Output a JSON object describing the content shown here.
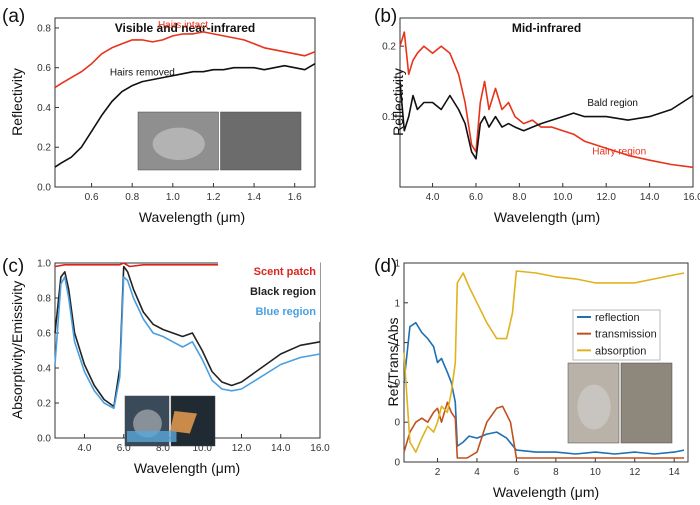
{
  "figure": {
    "panels": [
      {
        "label": "(a)"
      },
      {
        "label": "(b)"
      },
      {
        "label": "(c)"
      },
      {
        "label": "(d)"
      }
    ]
  },
  "chart_data": [
    {
      "panel": "(a)",
      "type": "line",
      "title": "Visible and near-infrared",
      "xlabel": "Wavelength (μm)",
      "ylabel": "Reflectivity",
      "xlim": [
        0.42,
        1.7
      ],
      "ylim": [
        0,
        0.85
      ],
      "xticks": [
        0.6,
        0.8,
        1.0,
        1.2,
        1.4,
        1.6
      ],
      "yticks": [
        0.0,
        0.2,
        0.4,
        0.6,
        0.8
      ],
      "tick_decimals": 1,
      "grid": false,
      "legend": "none",
      "series": [
        {
          "name": "Hairs intact",
          "color": "#e8331b",
          "x": [
            0.42,
            0.45,
            0.5,
            0.55,
            0.6,
            0.65,
            0.7,
            0.75,
            0.8,
            0.85,
            0.9,
            0.95,
            1.0,
            1.05,
            1.1,
            1.15,
            1.2,
            1.25,
            1.3,
            1.35,
            1.4,
            1.45,
            1.5,
            1.55,
            1.6,
            1.65,
            1.7
          ],
          "y": [
            0.5,
            0.52,
            0.55,
            0.58,
            0.62,
            0.67,
            0.7,
            0.72,
            0.74,
            0.74,
            0.73,
            0.74,
            0.76,
            0.77,
            0.77,
            0.78,
            0.77,
            0.76,
            0.75,
            0.74,
            0.72,
            0.7,
            0.69,
            0.68,
            0.67,
            0.66,
            0.68
          ]
        },
        {
          "name": "Hairs removed",
          "color": "#111111",
          "x": [
            0.42,
            0.45,
            0.5,
            0.55,
            0.6,
            0.65,
            0.7,
            0.75,
            0.8,
            0.85,
            0.9,
            0.95,
            1.0,
            1.05,
            1.1,
            1.15,
            1.2,
            1.25,
            1.3,
            1.35,
            1.4,
            1.45,
            1.5,
            1.55,
            1.6,
            1.65,
            1.7
          ],
          "y": [
            0.1,
            0.12,
            0.15,
            0.2,
            0.28,
            0.36,
            0.43,
            0.48,
            0.51,
            0.53,
            0.54,
            0.55,
            0.56,
            0.57,
            0.58,
            0.58,
            0.59,
            0.59,
            0.6,
            0.6,
            0.6,
            0.59,
            0.6,
            0.61,
            0.6,
            0.59,
            0.62
          ]
        }
      ],
      "annotations": [
        {
          "text": "Hairs intact",
          "x": 1.05,
          "y": 0.8,
          "color": "#e8331b"
        },
        {
          "text": "Hairs removed",
          "x": 0.85,
          "y": 0.56,
          "color": "#111111"
        }
      ]
    },
    {
      "panel": "(b)",
      "type": "line",
      "title": "Mid-infrared",
      "xlabel": "Wavelength (μm)",
      "ylabel": "Reflectivity",
      "xlim": [
        2.5,
        16
      ],
      "ylim": [
        0,
        0.24
      ],
      "xticks": [
        4,
        6,
        8,
        10,
        12,
        14,
        16
      ],
      "yticks": [
        0.1,
        0.2
      ],
      "tick_decimals": 1,
      "grid": false,
      "legend": "none",
      "series": [
        {
          "name": "Hairy region",
          "color": "#e8331b",
          "x": [
            2.5,
            2.7,
            2.9,
            3.1,
            3.3,
            3.6,
            4.0,
            4.4,
            4.8,
            5.2,
            5.5,
            5.8,
            6.0,
            6.2,
            6.4,
            6.6,
            6.9,
            7.2,
            7.5,
            7.8,
            8.2,
            8.6,
            9.0,
            9.5,
            10.0,
            10.5,
            11.0,
            12.0,
            13.0,
            14.0,
            15.0,
            16.0
          ],
          "y": [
            0.2,
            0.22,
            0.16,
            0.18,
            0.19,
            0.2,
            0.19,
            0.2,
            0.19,
            0.16,
            0.12,
            0.06,
            0.05,
            0.12,
            0.15,
            0.11,
            0.14,
            0.11,
            0.12,
            0.1,
            0.09,
            0.095,
            0.085,
            0.085,
            0.08,
            0.075,
            0.065,
            0.055,
            0.045,
            0.038,
            0.032,
            0.028
          ]
        },
        {
          "name": "Bald region",
          "color": "#111111",
          "x": [
            2.5,
            2.7,
            2.9,
            3.1,
            3.3,
            3.6,
            4.0,
            4.4,
            4.8,
            5.2,
            5.5,
            5.8,
            6.0,
            6.2,
            6.4,
            6.6,
            6.9,
            7.2,
            7.5,
            7.8,
            8.2,
            8.6,
            9.0,
            9.5,
            10.0,
            10.5,
            11.0,
            12.0,
            13.0,
            14.0,
            15.0,
            16.0
          ],
          "y": [
            0.15,
            0.08,
            0.1,
            0.13,
            0.11,
            0.12,
            0.12,
            0.11,
            0.13,
            0.11,
            0.09,
            0.05,
            0.04,
            0.09,
            0.1,
            0.085,
            0.1,
            0.085,
            0.09,
            0.085,
            0.08,
            0.085,
            0.09,
            0.095,
            0.1,
            0.105,
            0.1,
            0.1,
            0.095,
            0.1,
            0.11,
            0.13
          ]
        }
      ],
      "annotations": [
        {
          "text": "Bald region",
          "x": 12.3,
          "y": 0.115,
          "color": "#111111"
        },
        {
          "text": "Hairy region",
          "x": 12.6,
          "y": 0.046,
          "color": "#e8331b"
        }
      ]
    },
    {
      "panel": "(c)",
      "type": "line",
      "xlabel": "Wavelength (μm)",
      "ylabel": "Absorptivity/Emissivity",
      "xlim": [
        2.5,
        16
      ],
      "ylim": [
        0,
        1
      ],
      "xticks": [
        4,
        6,
        8,
        10,
        12,
        14,
        16
      ],
      "yticks": [
        0.0,
        0.2,
        0.4,
        0.6,
        0.8,
        1.0
      ],
      "tick_decimals": 1,
      "grid": false,
      "legend": "top-right",
      "series": [
        {
          "name": "Scent patch",
          "color": "#d9261c",
          "x": [
            2.5,
            3.0,
            4.0,
            5.0,
            5.8,
            6.0,
            6.3,
            7.0,
            8.0,
            10.0,
            12.0,
            14.0,
            16.0
          ],
          "y": [
            0.98,
            0.99,
            0.99,
            0.99,
            0.99,
            1.0,
            0.98,
            0.99,
            0.99,
            0.99,
            0.99,
            0.99,
            0.99
          ]
        },
        {
          "name": "Black region",
          "color": "#222222",
          "x": [
            2.5,
            2.8,
            3.0,
            3.2,
            3.5,
            4.0,
            4.5,
            5.0,
            5.5,
            5.8,
            6.0,
            6.2,
            6.5,
            7.0,
            7.5,
            8.0,
            8.5,
            9.0,
            9.5,
            10.0,
            10.5,
            11.0,
            11.5,
            12.0,
            13.0,
            14.0,
            15.0,
            16.0
          ],
          "y": [
            0.6,
            0.92,
            0.95,
            0.85,
            0.6,
            0.42,
            0.3,
            0.22,
            0.18,
            0.4,
            0.98,
            0.95,
            0.85,
            0.72,
            0.65,
            0.62,
            0.6,
            0.58,
            0.6,
            0.5,
            0.38,
            0.32,
            0.3,
            0.32,
            0.4,
            0.48,
            0.53,
            0.55
          ]
        },
        {
          "name": "Blue region",
          "color": "#4a9fe0",
          "x": [
            2.5,
            2.8,
            3.0,
            3.2,
            3.5,
            4.0,
            4.5,
            5.0,
            5.5,
            5.8,
            6.0,
            6.2,
            6.5,
            7.0,
            7.5,
            8.0,
            8.5,
            9.0,
            9.5,
            10.0,
            10.5,
            11.0,
            11.5,
            12.0,
            13.0,
            14.0,
            15.0,
            16.0
          ],
          "y": [
            0.42,
            0.88,
            0.92,
            0.8,
            0.55,
            0.38,
            0.27,
            0.2,
            0.17,
            0.35,
            0.92,
            0.9,
            0.8,
            0.68,
            0.6,
            0.58,
            0.55,
            0.52,
            0.55,
            0.45,
            0.33,
            0.28,
            0.27,
            0.28,
            0.35,
            0.42,
            0.46,
            0.48
          ]
        }
      ]
    },
    {
      "panel": "(d)",
      "type": "line",
      "xlabel": "Wavelength (μm)",
      "ylabel": "Ref/Trans/Abs",
      "xlim": [
        0.3,
        14.7
      ],
      "ylim": [
        0,
        1
      ],
      "xticks": [
        2,
        4,
        6,
        8,
        10,
        12,
        14
      ],
      "yticks": [
        0,
        0.2,
        0.4,
        0.6,
        0.8,
        1
      ],
      "tick_decimals": 0,
      "grid": false,
      "legend": "center-right",
      "series": [
        {
          "name": "reflection",
          "color": "#1f6fb2",
          "x": [
            0.3,
            0.6,
            0.9,
            1.2,
            1.5,
            1.8,
            2.0,
            2.2,
            2.5,
            2.7,
            2.9,
            3.0,
            3.3,
            3.6,
            4.0,
            4.5,
            5.0,
            5.5,
            6.0,
            7.0,
            8.0,
            9.0,
            10.0,
            11.0,
            12.0,
            13.0,
            14.0,
            14.5
          ],
          "y": [
            0.4,
            0.68,
            0.7,
            0.65,
            0.62,
            0.58,
            0.5,
            0.52,
            0.45,
            0.4,
            0.3,
            0.08,
            0.1,
            0.13,
            0.12,
            0.14,
            0.15,
            0.12,
            0.06,
            0.05,
            0.05,
            0.04,
            0.05,
            0.04,
            0.05,
            0.04,
            0.05,
            0.06
          ]
        },
        {
          "name": "transmission",
          "color": "#c0501f",
          "x": [
            0.3,
            0.6,
            0.9,
            1.2,
            1.5,
            1.8,
            2.0,
            2.2,
            2.5,
            2.7,
            2.9,
            3.0,
            3.5,
            4.0,
            4.5,
            5.0,
            5.3,
            5.7,
            6.0,
            7.0,
            8.0,
            9.0,
            10.0,
            11.0,
            12.0,
            13.0,
            14.0,
            14.5
          ],
          "y": [
            0.05,
            0.15,
            0.2,
            0.22,
            0.2,
            0.25,
            0.27,
            0.2,
            0.3,
            0.25,
            0.22,
            0.02,
            0.02,
            0.05,
            0.2,
            0.27,
            0.28,
            0.2,
            0.02,
            0.02,
            0.02,
            0.02,
            0.02,
            0.02,
            0.02,
            0.02,
            0.02,
            0.02
          ]
        },
        {
          "name": "absorption",
          "color": "#e0b21f",
          "x": [
            0.3,
            0.6,
            0.9,
            1.2,
            1.5,
            1.8,
            2.0,
            2.2,
            2.5,
            2.7,
            2.9,
            3.0,
            3.3,
            3.6,
            4.0,
            4.5,
            5.0,
            5.5,
            5.8,
            6.0,
            7.0,
            8.0,
            9.0,
            10.0,
            11.0,
            12.0,
            13.0,
            14.0,
            14.5
          ],
          "y": [
            0.55,
            0.1,
            0.05,
            0.12,
            0.18,
            0.15,
            0.2,
            0.28,
            0.25,
            0.35,
            0.5,
            0.9,
            0.95,
            0.88,
            0.8,
            0.7,
            0.62,
            0.62,
            0.75,
            0.96,
            0.95,
            0.93,
            0.92,
            0.9,
            0.9,
            0.9,
            0.92,
            0.94,
            0.95
          ]
        }
      ]
    }
  ]
}
